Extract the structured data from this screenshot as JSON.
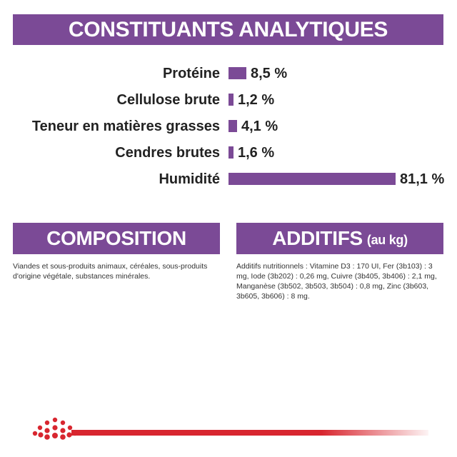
{
  "colors": {
    "purple": "#7b4a96",
    "red": "#d8262f"
  },
  "analytiques": {
    "title": "CONSTITUANTS ANALYTIQUES",
    "rows": [
      {
        "label": "Protéine",
        "value_text": "8,5 %",
        "value": 8.5
      },
      {
        "label": "Cellulose brute",
        "value_text": "1,2 %",
        "value": 1.2
      },
      {
        "label": "Teneur en matières grasses",
        "value_text": "4,1 %",
        "value": 4.1
      },
      {
        "label": "Cendres brutes",
        "value_text": "1,6 %",
        "value": 1.6
      },
      {
        "label": "Humidité",
        "value_text": "81,1 %",
        "value": 81.1
      }
    ]
  },
  "composition": {
    "title": "COMPOSITION",
    "text": "Viandes et sous-produits animaux, céréales, sous-produits d'origine végétale, substances minérales."
  },
  "additifs": {
    "title": "ADDITIFS",
    "title_suffix": "(au kg)",
    "text": "Additifs nutritionnels : Vitamine D3 : 170 UI, Fer (3b103) : 3 mg, Iode (3b202) : 0,26 mg, Cuivre (3b405, 3b406) : 2,1 mg, Manganèse (3b502, 3b503, 3b504) : 0,8 mg, Zinc (3b603, 3b605, 3b606) : 8 mg."
  },
  "logo": {
    "icon": "crown-icon"
  }
}
